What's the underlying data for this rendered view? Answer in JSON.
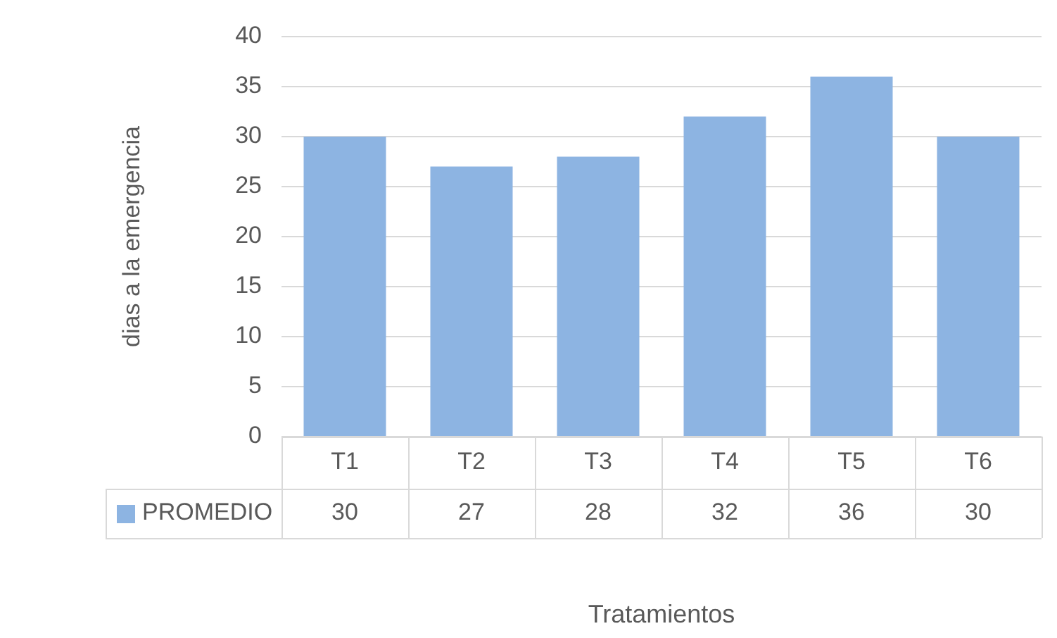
{
  "chart_data": {
    "type": "bar",
    "ylabel": "dias a la emergencia",
    "xlabel": "Tratamientos",
    "categories": [
      "T1",
      "T2",
      "T3",
      "T4",
      "T5",
      "T6"
    ],
    "series": [
      {
        "name": "PROMEDIO",
        "color": "#8db4e2",
        "values": [
          30,
          27,
          28,
          32,
          36,
          30
        ]
      }
    ],
    "ylim": [
      0,
      40
    ],
    "yticks": [
      0,
      5,
      10,
      15,
      20,
      25,
      30,
      35,
      40
    ],
    "grid": "y",
    "legend": "bottom left",
    "data_labels": true
  }
}
